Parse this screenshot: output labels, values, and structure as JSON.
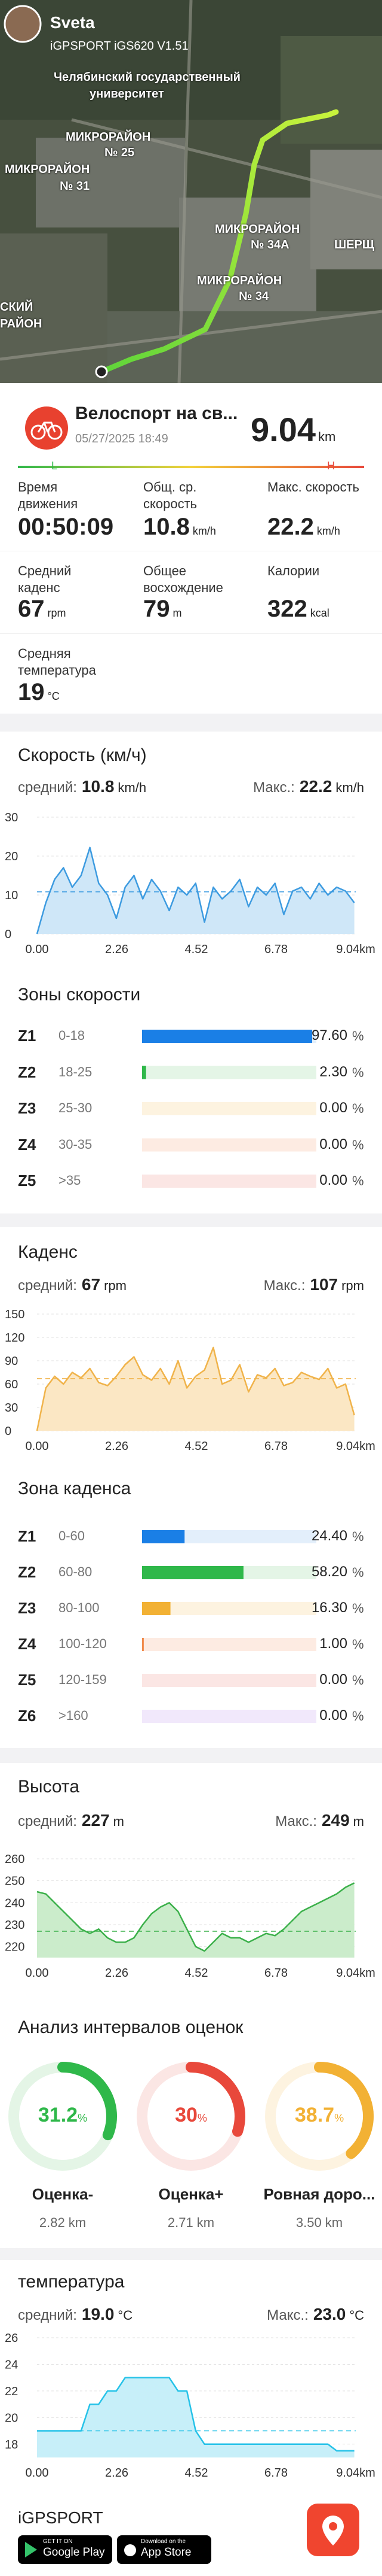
{
  "header": {
    "user": "Sveta",
    "device": "iGPSPORT iGS620 V1.51",
    "map_labels": [
      "Челябинский государственный",
      "университет",
      "МИКРОРАЙОН",
      "№ 25",
      "МИКРОРАЙОН",
      "№ 31",
      "МИКРОРАЙОН",
      "№ 34А",
      "ШЕРЩ",
      "МИКРОРАЙОН",
      "№ 34",
      "СКИЙ",
      "РАЙОН"
    ]
  },
  "activity": {
    "title": "Велоспорт на св...",
    "date": "05/27/2025 18:49",
    "distance": 9.04,
    "distance_unit": "km",
    "low": "L",
    "high": "H"
  },
  "stats": [
    {
      "label": "Время движения",
      "value": "00:50:09"
    },
    {
      "label": "Общ. ср. скорость",
      "value": 10.8,
      "unit": "km/h"
    },
    {
      "label": "Макс. скорость",
      "value": 22.2,
      "unit": "km/h"
    },
    {
      "label": "Средний каденс",
      "value": 67,
      "unit": "rpm"
    },
    {
      "label": "Общее восхождение",
      "value": 79,
      "unit": "m"
    },
    {
      "label": "Калории",
      "value": 322,
      "unit": "kcal"
    },
    {
      "label": "Средняя температура",
      "value": 19,
      "unit": "°C"
    }
  ],
  "speed_chart": {
    "type": "area",
    "title": "Скорость (км/ч)",
    "avg_label": "средний:",
    "average": 10.8,
    "max_label": "Макс.:",
    "max": 22.2,
    "unit": "km/h",
    "color": "#3d9be0",
    "fill": "#cfe7f8",
    "grid": true,
    "xlim": [
      0,
      9.04
    ],
    "xticks": [
      {
        "value": 0,
        "label": "0.00"
      },
      2.26,
      4.52,
      6.78,
      {
        "value": 9.04,
        "label": "9.04km"
      }
    ],
    "ylim": [
      0,
      30
    ],
    "yticks": [
      0,
      10,
      20,
      30
    ],
    "x": [
      0,
      0.25,
      0.5,
      0.75,
      1,
      1.25,
      1.5,
      1.75,
      2,
      2.25,
      2.5,
      2.75,
      3,
      3.25,
      3.5,
      3.75,
      4,
      4.25,
      4.5,
      4.75,
      5,
      5.25,
      5.5,
      5.75,
      6,
      6.25,
      6.5,
      6.75,
      7,
      7.25,
      7.5,
      7.75,
      8,
      8.25,
      8.5,
      8.75,
      9
    ],
    "values": [
      0,
      8,
      14,
      17,
      12,
      15,
      22.2,
      13,
      10,
      4,
      12,
      15,
      9,
      14,
      11,
      6,
      12,
      10,
      13,
      3,
      12,
      9,
      11,
      14,
      7,
      12,
      10,
      13,
      5,
      11,
      12,
      9,
      13,
      10,
      12,
      11,
      8
    ]
  },
  "speed_zones": {
    "title": "Зоны скорости",
    "unit": "%",
    "zones": [
      {
        "name": "Z1",
        "range": "0-18",
        "value": 97.6,
        "value_label": "97.60",
        "color": "#1a7fe6",
        "track": "#e3effb"
      },
      {
        "name": "Z2",
        "range": "18-25",
        "value": 2.3,
        "value_label": "2.30",
        "color": "#2fb84a",
        "track": "#e4f5e6"
      },
      {
        "name": "Z3",
        "range": "25-30",
        "value": 0,
        "value_label": "0.00",
        "color": "#f2b134",
        "track": "#fdf3e0"
      },
      {
        "name": "Z4",
        "range": "30-35",
        "value": 0,
        "value_label": "0.00",
        "color": "#f08a4b",
        "track": "#fdebe2"
      },
      {
        "name": "Z5",
        "range": ">35",
        "value": 0,
        "value_label": "0.00",
        "color": "#e8483b",
        "track": "#fbe6e4"
      }
    ]
  },
  "cadence_chart": {
    "type": "area",
    "title": "Каденс",
    "avg_label": "средний:",
    "average": 67,
    "max_label": "Макс.:",
    "max": 107,
    "unit": "rpm",
    "color": "#f0b34a",
    "fill": "#fbe7c4",
    "grid": true,
    "xlim": [
      0,
      9.04
    ],
    "xticks": [
      {
        "value": 0,
        "label": "0.00"
      },
      2.26,
      4.52,
      6.78,
      {
        "value": 9.04,
        "label": "9.04km"
      }
    ],
    "ylim": [
      0,
      150
    ],
    "yticks": [
      0,
      30,
      60,
      90,
      120,
      150
    ],
    "x": [
      0,
      0.25,
      0.5,
      0.75,
      1,
      1.25,
      1.5,
      1.75,
      2,
      2.25,
      2.5,
      2.75,
      3,
      3.25,
      3.5,
      3.75,
      4,
      4.25,
      4.5,
      4.75,
      5,
      5.25,
      5.5,
      5.75,
      6,
      6.25,
      6.5,
      6.75,
      7,
      7.25,
      7.5,
      7.75,
      8,
      8.25,
      8.5,
      8.75,
      9
    ],
    "values": [
      0,
      55,
      70,
      60,
      75,
      68,
      80,
      62,
      58,
      70,
      85,
      95,
      72,
      65,
      80,
      60,
      90,
      55,
      70,
      78,
      107,
      60,
      65,
      85,
      50,
      72,
      68,
      80,
      58,
      62,
      75,
      70,
      66,
      80,
      55,
      60,
      20
    ]
  },
  "cadence_zones": {
    "title": "Зона каденса",
    "unit": "%",
    "zones": [
      {
        "name": "Z1",
        "range": "0-60",
        "value": 24.4,
        "value_label": "24.40",
        "color": "#1a7fe6",
        "track": "#e3effb"
      },
      {
        "name": "Z2",
        "range": "60-80",
        "value": 58.2,
        "value_label": "58.20",
        "color": "#2fb84a",
        "track": "#e4f5e6"
      },
      {
        "name": "Z3",
        "range": "80-100",
        "value": 16.3,
        "value_label": "16.30",
        "color": "#f2b134",
        "track": "#fdf3e0"
      },
      {
        "name": "Z4",
        "range": "100-120",
        "value": 1,
        "value_label": "1.00",
        "color": "#f08a4b",
        "track": "#fdebe2"
      },
      {
        "name": "Z5",
        "range": "120-159",
        "value": 0,
        "value_label": "0.00",
        "color": "#e8483b",
        "track": "#fbe6e4"
      },
      {
        "name": "Z6",
        "range": ">160",
        "value": 0,
        "value_label": "0.00",
        "color": "#a76be0",
        "track": "#f1e8fb"
      }
    ]
  },
  "altitude_chart": {
    "type": "area",
    "title": "Высота",
    "avg_label": "средний:",
    "average": 227,
    "max_label": "Макс.:",
    "max": 249,
    "unit": "m",
    "color": "#3bb04a",
    "fill": "#cbeccb",
    "grid": true,
    "xlim": [
      0,
      9.04
    ],
    "xticks": [
      {
        "value": 0,
        "label": "0.00"
      },
      2.26,
      4.52,
      6.78,
      {
        "value": 9.04,
        "label": "9.04km"
      }
    ],
    "ylim": [
      215,
      260
    ],
    "yticks": [
      220,
      230,
      240,
      250,
      260
    ],
    "x": [
      0,
      0.25,
      0.5,
      0.75,
      1,
      1.25,
      1.5,
      1.75,
      2,
      2.25,
      2.5,
      2.75,
      3,
      3.25,
      3.5,
      3.75,
      4,
      4.25,
      4.5,
      4.75,
      5,
      5.25,
      5.5,
      5.75,
      6,
      6.25,
      6.5,
      6.75,
      7,
      7.25,
      7.5,
      7.75,
      8,
      8.25,
      8.5,
      8.75,
      9
    ],
    "values": [
      245,
      244,
      240,
      236,
      232,
      228,
      226,
      228,
      224,
      222,
      222,
      224,
      230,
      235,
      238,
      240,
      236,
      228,
      220,
      218,
      222,
      226,
      224,
      224,
      222,
      224,
      226,
      225,
      228,
      232,
      236,
      238,
      240,
      242,
      244,
      247,
      249
    ]
  },
  "intervals": {
    "title": "Анализ интервалов оценок",
    "unit": "%",
    "items": [
      {
        "value": 31.2,
        "name": "Оценка-",
        "distance": "2.82 km",
        "color": "#2fb84a",
        "track": "#e4f5e6"
      },
      {
        "value": 30,
        "name": "Оценка+",
        "distance": "2.71 km",
        "color": "#e8483b",
        "track": "#fbe6e4"
      },
      {
        "value": 38.7,
        "name": "Ровная доро...",
        "distance": "3.50 km",
        "color": "#f2b134",
        "track": "#fdf3e0"
      }
    ]
  },
  "temperature_chart": {
    "type": "area",
    "title": "температура",
    "avg_label": "средний:",
    "average": 19,
    "average_label": "19.0",
    "max_label": "Макс.:",
    "max": 23,
    "max_value_label": "23.0",
    "unit": "°C",
    "color": "#25c2e8",
    "fill": "#c7eff9",
    "grid": true,
    "xlim": [
      0,
      9.04
    ],
    "xticks": [
      {
        "value": 0,
        "label": "0.00"
      },
      2.26,
      4.52,
      6.78,
      {
        "value": 9.04,
        "label": "9.04km"
      }
    ],
    "ylim": [
      17,
      26
    ],
    "yticks": [
      18,
      20,
      22,
      24,
      26
    ],
    "x": [
      0,
      0.25,
      0.5,
      0.75,
      1,
      1.25,
      1.5,
      1.75,
      2,
      2.25,
      2.5,
      2.75,
      3,
      3.25,
      3.5,
      3.75,
      4,
      4.25,
      4.5,
      4.75,
      5,
      5.25,
      5.5,
      5.75,
      6,
      6.25,
      6.5,
      6.75,
      7,
      7.25,
      7.5,
      7.75,
      8,
      8.25,
      8.5,
      8.75,
      9
    ],
    "values": [
      19,
      19,
      19,
      19,
      19,
      19,
      21,
      21,
      22,
      22,
      23,
      23,
      23,
      23,
      23,
      23,
      22,
      22,
      19,
      18,
      18,
      18,
      18,
      18,
      18,
      18,
      18,
      18,
      18,
      18,
      18,
      18,
      18,
      18,
      17.5,
      17.5,
      17.5
    ]
  },
  "footer": {
    "brand": "iGPSPORT",
    "google_small": "GET IT ON",
    "google": "Google Play",
    "apple_small": "Download on the",
    "apple": "App Store"
  }
}
